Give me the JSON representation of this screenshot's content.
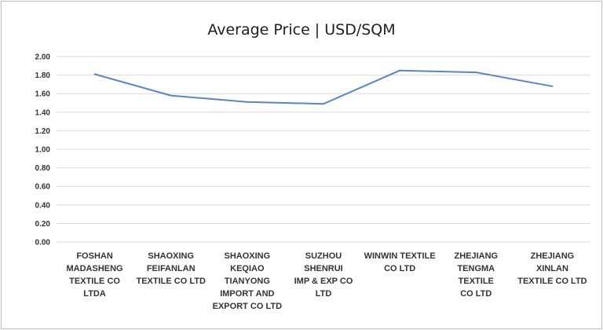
{
  "chart_data": {
    "type": "line",
    "title": "Average Price | USD/SQM",
    "xlabel": "",
    "ylabel": "",
    "categories": [
      "FOSHAN MADASHENG TEXTILE CO LTDA",
      "SHAOXING FEIFANLAN TEXTILE CO LTD",
      "SHAOXING KEQIAO TIANYONG IMPORT AND EXPORT CO LTD",
      "SUZHOU SHENRUI IMP & EXP CO LTD",
      "WINWIN TEXTILE CO LTD",
      "ZHEJIANG TENGMA TEXTILE CO LTD",
      "ZHEJIANG XINLAN TEXTILE CO LTD"
    ],
    "category_lines": [
      [
        "FOSHAN",
        "MADASHENG",
        "TEXTILE CO LTDA"
      ],
      [
        "SHAOXING",
        "FEIFANLAN",
        "TEXTILE CO LTD"
      ],
      [
        "SHAOXING",
        "KEQIAO",
        "TIANYONG",
        "IMPORT AND",
        "EXPORT CO LTD"
      ],
      [
        "SUZHOU SHENRUI",
        "IMP & EXP CO LTD"
      ],
      [
        "WINWIN TEXTILE",
        "CO LTD"
      ],
      [
        "ZHEJIANG",
        "TENGMA TEXTILE",
        "CO LTD"
      ],
      [
        "ZHEJIANG XINLAN",
        "TEXTILE CO LTD"
      ]
    ],
    "series": [
      {
        "values": [
          1.81,
          1.58,
          1.51,
          1.49,
          1.85,
          1.83,
          1.68
        ]
      }
    ],
    "ylim": [
      0,
      2
    ],
    "yticks": [
      "0.00",
      "0.20",
      "0.40",
      "0.60",
      "0.80",
      "1.00",
      "1.20",
      "1.40",
      "1.60",
      "1.80",
      "2.00"
    ],
    "grid": true,
    "legend": "none",
    "colors": {
      "line": "#5b86c2",
      "grid": "#d9d9d9",
      "text": "#333333"
    }
  }
}
